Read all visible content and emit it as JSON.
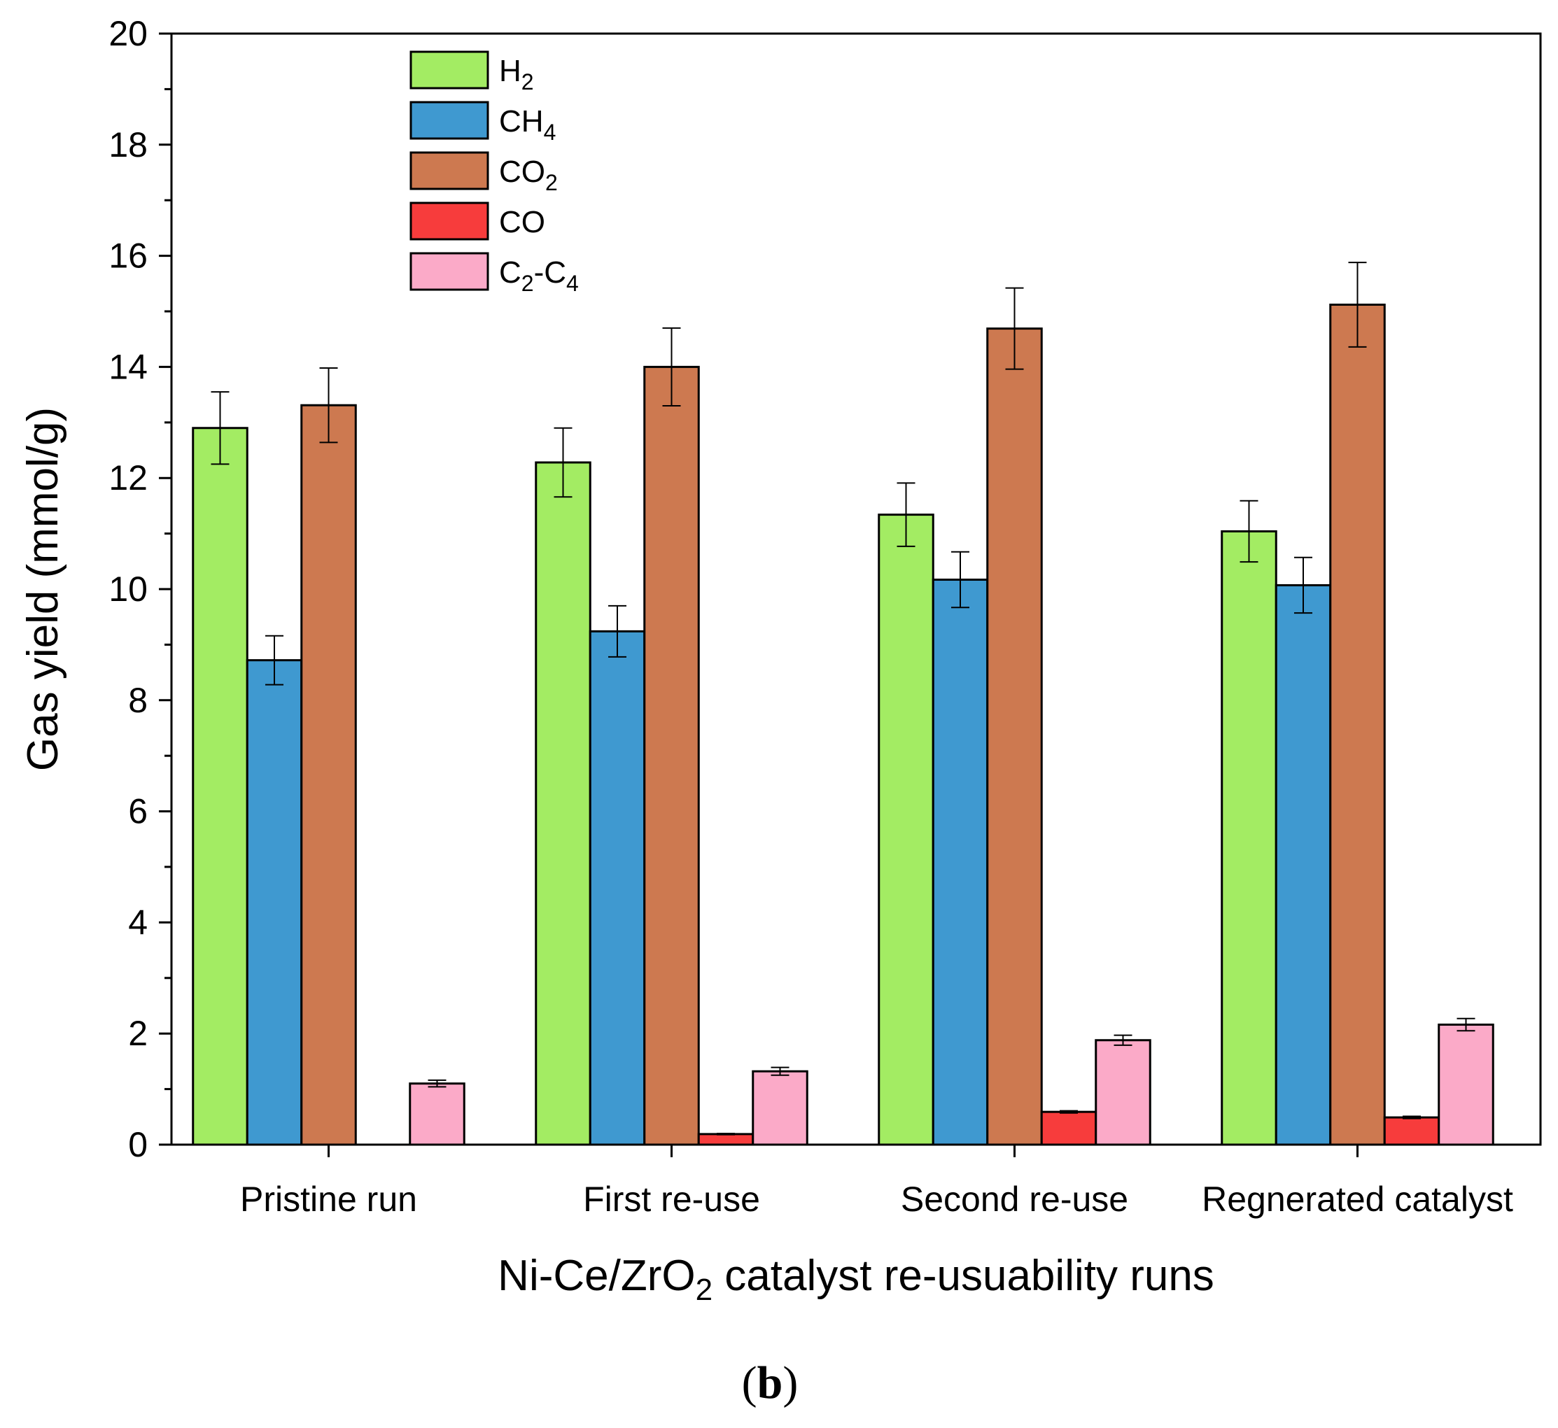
{
  "chart_data": {
    "type": "bar",
    "title": "",
    "xlabel": "Ni-Ce/ZrO2 catalyst re-usuability runs",
    "xlabel_parts": {
      "before": "Ni-Ce/ZrO",
      "sub": "2",
      "after": " catalyst re-usuability runs"
    },
    "ylabel": "Gas yield (mmol/g)",
    "ylim": [
      0,
      20
    ],
    "yticks": [
      0,
      2,
      4,
      6,
      8,
      10,
      12,
      14,
      16,
      18,
      20
    ],
    "categories": [
      "Pristine run",
      "First re-use",
      "Second re-use",
      "Regnerated catalyst"
    ],
    "series": [
      {
        "name": "H2",
        "legend": {
          "base": "H",
          "sub": "2"
        },
        "color": "#a3ec63",
        "values": [
          12.9,
          12.28,
          11.34,
          11.04
        ],
        "errors": [
          0.65,
          0.62,
          0.57,
          0.55
        ]
      },
      {
        "name": "CH4",
        "legend": {
          "base": "CH",
          "sub": "4"
        },
        "color": "#3f99d0",
        "values": [
          8.72,
          9.24,
          10.17,
          10.07
        ],
        "errors": [
          0.44,
          0.46,
          0.5,
          0.5
        ]
      },
      {
        "name": "CO2",
        "legend": {
          "base": "CO",
          "sub": "2"
        },
        "color": "#cd7950",
        "values": [
          13.31,
          14.0,
          14.69,
          15.12
        ],
        "errors": [
          0.67,
          0.7,
          0.73,
          0.76
        ]
      },
      {
        "name": "CO",
        "legend": {
          "base": "CO",
          "sub": ""
        },
        "color": "#f73c3c",
        "values": [
          0,
          0.19,
          0.59,
          0.49
        ],
        "errors": [
          0,
          0.01,
          0.02,
          0.02
        ]
      },
      {
        "name": "C2-C4",
        "legend": {
          "base": "C",
          "sub": "2",
          "mid": "-C",
          "sub2": "4"
        },
        "color": "#fbaac8",
        "values": [
          1.1,
          1.32,
          1.88,
          2.16
        ],
        "errors": [
          0.06,
          0.07,
          0.09,
          0.11
        ]
      }
    ],
    "panel_label": {
      "open": "(",
      "letter": "b",
      "close": ")"
    }
  }
}
